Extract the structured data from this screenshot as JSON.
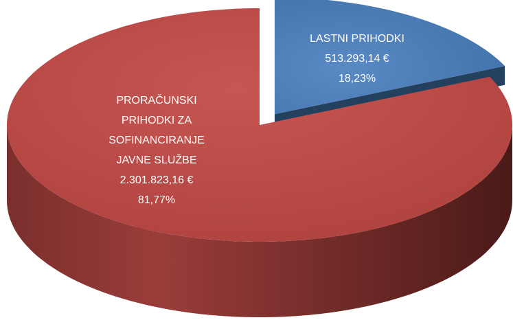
{
  "chart_data": {
    "type": "pie",
    "categories": [
      "LASTNI PRIHODKI",
      "PRORAČUNSKI PRIHODKI ZA SOFINANCIRANJE JAVNE SLUŽBE"
    ],
    "amount_labels": [
      "513.293,14 €",
      "2.301.823,16 €"
    ],
    "values": [
      18.23,
      81.77
    ],
    "value_labels": [
      "18,23%",
      "81,77%"
    ],
    "colors": [
      "#4f81bd",
      "#c0504d"
    ],
    "explode": [
      true,
      false
    ],
    "three_d": true
  }
}
